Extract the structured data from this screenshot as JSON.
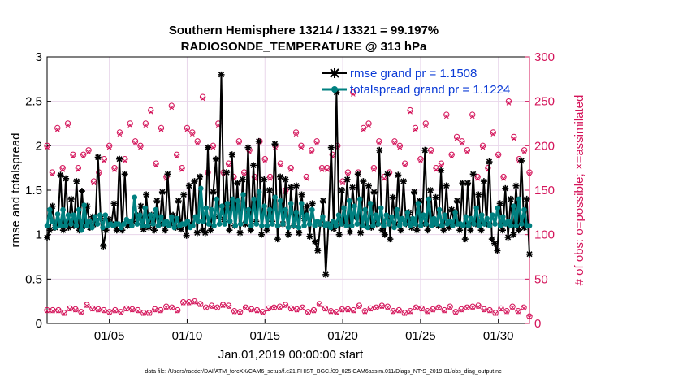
{
  "chart_data": {
    "type": "line",
    "title_line1": "Southern Hemisphere 13214 / 13321 = 99.197%",
    "title_line2": "RADIOSONDE_TEMPERATURE @ 313 hPa",
    "xlabel": "Jan.01,2019 00:00:00 start",
    "ylabel_left": "rmse and totalspread",
    "ylabel_right": "# of obs: o=possible; ×=assimilated",
    "footnote": "data file: /Users/raeder/DAI/ATM_forcXX/CAM6_setup/f.e21.FHIST_BGC.f09_025.CAM6assim.011/Diags_NTrS_2019-01/obs_diag_output.nc",
    "xlim": [
      1,
      32
    ],
    "ylim_left": [
      0,
      3
    ],
    "ylim_right": [
      0,
      300
    ],
    "left_ticks": [
      "0",
      "0.5",
      "1",
      "1.5",
      "2",
      "2.5",
      "3"
    ],
    "right_ticks": [
      "0",
      "50",
      "100",
      "150",
      "200",
      "250",
      "300"
    ],
    "x_ticks": [
      {
        "day": 5,
        "label": "01/05"
      },
      {
        "day": 10,
        "label": "01/10"
      },
      {
        "day": 15,
        "label": "01/15"
      },
      {
        "day": 20,
        "label": "01/20"
      },
      {
        "day": 25,
        "label": "01/25"
      },
      {
        "day": 30,
        "label": "01/30"
      }
    ],
    "series": [
      {
        "name": "rmse grand pr = 1.1508",
        "color": "#000000",
        "values": [
          0.97,
          1.05,
          1.32,
          1.08,
          1.12,
          1.67,
          1.05,
          1.63,
          1.08,
          1.4,
          1.1,
          1.6,
          1.05,
          1.49,
          1.1,
          1.32,
          1.08,
          1.2,
          1.12,
          1.87,
          1.18,
          0.87,
          1.05,
          1.17,
          1.12,
          1.35,
          1.05,
          1.85,
          1.05,
          1.68,
          1.1,
          1.12,
          1.15,
          1.22,
          1.18,
          1.32,
          1.06,
          1.45,
          1.08,
          1.22,
          1.05,
          1.38,
          1.12,
          1.48,
          1.05,
          1.68,
          1.12,
          1.22,
          1.08,
          1.38,
          1.06,
          1.45,
          0.99,
          1.55,
          1.12,
          1.6,
          1.02,
          1.65,
          1.05,
          1.02,
          1.98,
          1.05,
          1.48,
          1.85,
          1.2,
          2.8,
          1.17,
          1.7,
          1.05,
          1.9,
          1.1,
          1.58,
          1.02,
          1.62,
          1.12,
          1.98,
          1.05,
          1.78,
          1.15,
          2.05,
          1.0,
          1.62,
          1.05,
          1.5,
          1.15,
          2.02,
          0.95,
          1.65,
          1.12,
          1.62,
          1.0,
          1.53,
          1.1,
          1.55,
          1.02,
          1.45,
          1.18,
          1.32,
          0.98,
          1.35,
          0.92,
          0.82,
          1.12,
          1.38,
          0.55,
          1.12,
          1.98,
          1.07,
          2.6,
          1.0,
          1.5,
          1.12,
          1.62,
          1.03,
          1.53,
          1.2,
          1.68,
          1.02,
          1.6,
          1.1,
          1.55,
          1.08,
          1.48,
          1.12,
          1.95,
          1.05,
          1.0,
          1.68,
          0.95,
          1.42,
          1.12,
          1.67,
          1.05,
          1.6,
          1.12,
          1.25,
          1.08,
          1.48,
          1.05,
          1.38,
          1.12,
          1.95,
          1.05,
          1.5,
          1.12,
          1.42,
          1.1,
          1.72,
          1.05,
          1.55,
          1.08,
          1.28,
          1.12,
          1.38,
          1.05,
          1.58,
          0.95,
          1.58,
          1.05,
          1.68,
          1.12,
          1.45,
          1.05,
          1.6,
          1.12,
          1.82,
          0.95,
          0.9,
          0.82,
          1.35,
          1.05,
          1.52,
          0.97,
          1.4,
          1.0,
          1.55,
          1.05,
          1.83,
          1.08,
          1.4,
          0.78
        ],
        "start_day": 1.0,
        "step_day": 0.168
      },
      {
        "name": "totalspread grand pr = 1.1224",
        "color": "#008080",
        "values": [
          1.1,
          1.28,
          1.15,
          1.08,
          1.23,
          1.1,
          1.28,
          1.1,
          1.22,
          1.12,
          1.22,
          1.1,
          1.28,
          1.05,
          1.33,
          1.1,
          1.15,
          1.08,
          1.2,
          1.12,
          1.22,
          1.08,
          1.22,
          1.1,
          1.12,
          1.1,
          1.12,
          1.12,
          1.08,
          1.12,
          1.17,
          1.15,
          1.1,
          1.42,
          1.12,
          1.22,
          1.1,
          1.3,
          1.1,
          1.22,
          1.12,
          1.28,
          1.1,
          1.2,
          1.12,
          1.15,
          1.1,
          1.2,
          1.08,
          1.18,
          1.1,
          1.12,
          1.12,
          1.15,
          1.08,
          1.1,
          1.2,
          1.15,
          1.52,
          1.15,
          1.3,
          1.12,
          1.28,
          1.1,
          1.4,
          1.12,
          1.32,
          1.12,
          1.35,
          1.15,
          1.4,
          1.1,
          1.38,
          1.12,
          1.45,
          1.15,
          1.28,
          1.1,
          1.4,
          1.12,
          1.48,
          1.1,
          1.32,
          1.1,
          1.28,
          1.12,
          1.42,
          1.1,
          1.38,
          1.12,
          1.28,
          1.08,
          1.35,
          1.1,
          1.25,
          1.08,
          1.35,
          1.1,
          1.22,
          1.12,
          1.28,
          1.1,
          1.15,
          1.12,
          1.2,
          1.1,
          1.12,
          1.08,
          1.15,
          1.1,
          1.22,
          1.12,
          1.3,
          1.1,
          1.38,
          1.1,
          1.32,
          1.12,
          1.4,
          1.1,
          1.28,
          1.08,
          1.35,
          1.1,
          1.22,
          1.12,
          1.3,
          1.1,
          1.22,
          1.12,
          1.2,
          1.08,
          1.28,
          1.1,
          1.18,
          1.12,
          1.25,
          1.1,
          1.18,
          1.12,
          1.35,
          1.1,
          1.22,
          1.12,
          1.4,
          1.1,
          1.18,
          1.12,
          1.28,
          1.1,
          1.22,
          1.12,
          1.15,
          1.1,
          1.25,
          1.12,
          1.12,
          1.1,
          1.2,
          1.1,
          1.18,
          1.12,
          1.3,
          1.1,
          1.22,
          1.12,
          1.18,
          1.1,
          1.22,
          1.12,
          1.3,
          1.1,
          1.2,
          1.12,
          1.15,
          1.1,
          1.32,
          1.1,
          1.4,
          1.12,
          1.28,
          1.1,
          1.1
        ],
        "start_day": 1.0,
        "step_day": 0.168
      }
    ],
    "obs_count_series": {
      "color": "#d4145a",
      "start_day": 1.0,
      "step_day": 0.5,
      "high_possible": [
        200,
        170,
        220,
        175,
        225,
        190,
        175,
        190,
        195,
        160,
        170,
        185,
        200,
        175,
        215,
        185,
        225,
        205,
        200,
        225,
        240,
        180,
        220,
        165,
        245,
        190,
        175,
        220,
        215,
        205,
        255,
        170,
        200,
        225,
        170,
        180,
        165,
        205,
        170,
        195,
        165,
        205,
        185,
        165,
        200,
        180,
        150,
        175,
        215,
        200,
        165,
        195,
        205,
        175,
        175,
        190,
        200,
        160,
        170,
        260,
        170,
        220,
        225,
        175,
        205,
        165,
        170,
        205,
        200,
        180,
        240,
        220,
        185,
        225,
        195,
        175,
        180,
        235,
        190,
        210,
        205,
        195,
        235,
        165,
        200,
        175,
        215,
        190,
        165,
        250,
        210,
        185,
        195,
        170
      ],
      "high_assimilated": [
        198,
        168,
        218,
        173,
        223,
        188,
        173,
        188,
        193,
        158,
        168,
        183,
        198,
        173,
        213,
        183,
        223,
        203,
        198,
        223,
        238,
        178,
        218,
        163,
        243,
        188,
        173,
        218,
        213,
        203,
        253,
        168,
        198,
        223,
        168,
        178,
        163,
        203,
        168,
        193,
        163,
        203,
        183,
        163,
        198,
        178,
        148,
        173,
        213,
        198,
        163,
        193,
        203,
        173,
        173,
        188,
        198,
        158,
        168,
        258,
        168,
        218,
        223,
        173,
        203,
        163,
        168,
        203,
        198,
        178,
        238,
        218,
        183,
        223,
        193,
        173,
        178,
        233,
        188,
        208,
        203,
        193,
        233,
        163,
        198,
        173,
        213,
        188,
        163,
        248,
        208,
        183,
        193,
        168
      ],
      "low_possible": [
        15,
        15,
        15,
        12,
        17,
        16,
        13,
        21,
        17,
        16,
        15,
        13,
        15,
        13,
        17,
        16,
        15,
        12,
        12,
        16,
        15,
        19,
        18,
        15,
        24,
        24,
        25,
        22,
        18,
        20,
        18,
        21,
        20,
        14,
        13,
        18,
        16,
        15,
        13,
        17,
        18,
        19,
        21,
        17,
        16,
        18,
        13,
        15,
        22,
        17,
        14,
        13,
        16,
        16,
        15,
        20,
        14,
        17,
        18,
        20,
        19,
        14,
        15,
        12,
        14,
        18,
        17,
        14,
        16,
        18,
        15,
        19,
        13,
        16,
        18,
        19,
        20,
        16,
        15,
        12,
        17,
        14,
        19,
        14,
        18,
        8
      ],
      "low_assimilated": [
        14,
        14,
        14,
        11,
        16,
        15,
        12,
        20,
        16,
        15,
        14,
        12,
        14,
        12,
        16,
        15,
        14,
        11,
        11,
        15,
        14,
        18,
        17,
        14,
        23,
        23,
        24,
        21,
        17,
        19,
        17,
        20,
        19,
        13,
        12,
        17,
        15,
        14,
        12,
        16,
        17,
        18,
        20,
        16,
        15,
        17,
        12,
        14,
        21,
        16,
        13,
        12,
        15,
        15,
        14,
        19,
        13,
        16,
        17,
        19,
        18,
        13,
        14,
        11,
        13,
        17,
        16,
        13,
        15,
        17,
        14,
        18,
        12,
        15,
        17,
        18,
        19,
        15,
        14,
        11,
        16,
        13,
        18,
        13,
        17,
        7
      ]
    }
  }
}
